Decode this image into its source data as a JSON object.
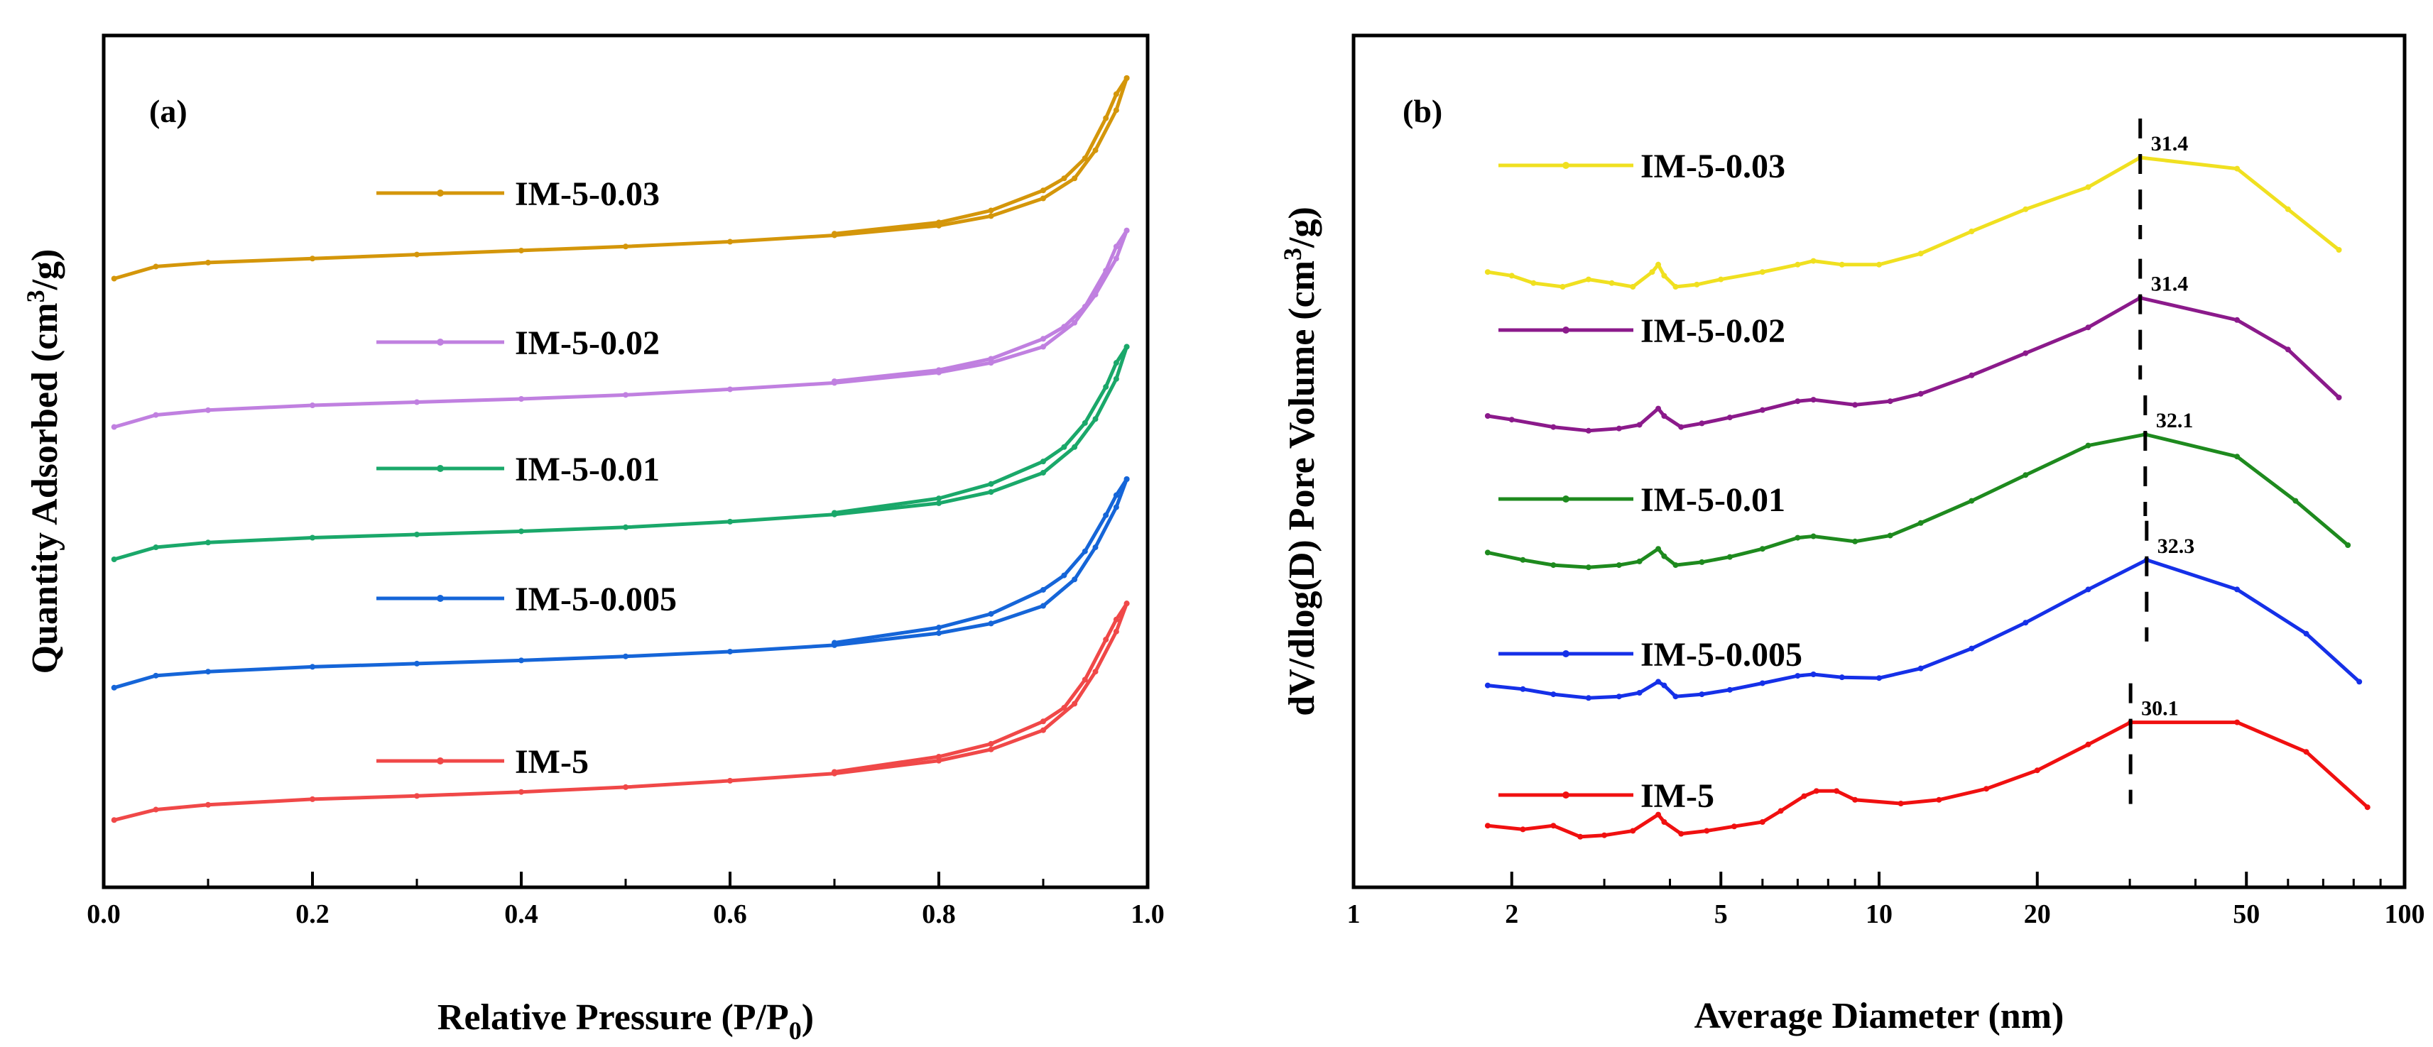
{
  "chart_data": [
    {
      "panel": "(a)",
      "type": "line",
      "xlabel": "Relative Pressure (P/P",
      "xlabel_sub": "0",
      "xlabel_close": ")",
      "ylabel": "Quantity Adsorbed (cm",
      "ylabel_sup": "3",
      "ylabel_close": "/g)",
      "xlim": [
        0,
        1
      ],
      "xticks": [
        "0.0",
        "0.2",
        "0.4",
        "0.6",
        "0.8",
        "1.0"
      ],
      "ylim": [
        0,
        100
      ],
      "y_tick_labels": false,
      "series": [
        {
          "name": "IM-5-0.03",
          "color": "#D4960A",
          "adsorption": [
            [
              0.01,
              75.0
            ],
            [
              0.05,
              76.5
            ],
            [
              0.1,
              77.0
            ],
            [
              0.2,
              77.5
            ],
            [
              0.3,
              78.0
            ],
            [
              0.4,
              78.5
            ],
            [
              0.5,
              79.0
            ],
            [
              0.6,
              79.6
            ],
            [
              0.7,
              80.4
            ],
            [
              0.8,
              81.6
            ],
            [
              0.85,
              82.8
            ],
            [
              0.9,
              85.0
            ],
            [
              0.93,
              87.5
            ],
            [
              0.95,
              91.0
            ],
            [
              0.97,
              96.0
            ],
            [
              0.98,
              100.0
            ]
          ],
          "desorption": [
            [
              0.98,
              100.0
            ],
            [
              0.97,
              98.0
            ],
            [
              0.96,
              95.0
            ],
            [
              0.94,
              90.0
            ],
            [
              0.92,
              87.5
            ],
            [
              0.9,
              86.0
            ],
            [
              0.85,
              83.5
            ],
            [
              0.8,
              82.0
            ],
            [
              0.7,
              80.6
            ]
          ]
        },
        {
          "name": "IM-5-0.02",
          "color": "#C080E0",
          "adsorption": [
            [
              0.01,
              56.5
            ],
            [
              0.05,
              58.0
            ],
            [
              0.1,
              58.6
            ],
            [
              0.2,
              59.2
            ],
            [
              0.3,
              59.6
            ],
            [
              0.4,
              60.0
            ],
            [
              0.5,
              60.5
            ],
            [
              0.6,
              61.2
            ],
            [
              0.7,
              62.0
            ],
            [
              0.8,
              63.3
            ],
            [
              0.85,
              64.5
            ],
            [
              0.9,
              66.5
            ],
            [
              0.93,
              69.5
            ],
            [
              0.95,
              73.0
            ],
            [
              0.97,
              77.5
            ],
            [
              0.98,
              81.0
            ]
          ],
          "desorption": [
            [
              0.98,
              81.0
            ],
            [
              0.97,
              79.0
            ],
            [
              0.96,
              76.0
            ],
            [
              0.94,
              71.5
            ],
            [
              0.92,
              69.0
            ],
            [
              0.9,
              67.5
            ],
            [
              0.85,
              65.0
            ],
            [
              0.8,
              63.6
            ],
            [
              0.7,
              62.2
            ]
          ]
        },
        {
          "name": "IM-5-0.01",
          "color": "#1AA86A",
          "adsorption": [
            [
              0.01,
              40.0
            ],
            [
              0.05,
              41.5
            ],
            [
              0.1,
              42.1
            ],
            [
              0.2,
              42.7
            ],
            [
              0.3,
              43.1
            ],
            [
              0.4,
              43.5
            ],
            [
              0.5,
              44.0
            ],
            [
              0.6,
              44.7
            ],
            [
              0.7,
              45.6
            ],
            [
              0.8,
              47.0
            ],
            [
              0.85,
              48.4
            ],
            [
              0.9,
              50.8
            ],
            [
              0.93,
              54.0
            ],
            [
              0.95,
              57.5
            ],
            [
              0.97,
              62.5
            ],
            [
              0.98,
              66.5
            ]
          ],
          "desorption": [
            [
              0.98,
              66.5
            ],
            [
              0.97,
              64.5
            ],
            [
              0.96,
              61.5
            ],
            [
              0.94,
              57.0
            ],
            [
              0.92,
              54.0
            ],
            [
              0.9,
              52.2
            ],
            [
              0.85,
              49.4
            ],
            [
              0.8,
              47.6
            ],
            [
              0.7,
              45.8
            ]
          ]
        },
        {
          "name": "IM-5-0.005",
          "color": "#1565D8",
          "adsorption": [
            [
              0.01,
              24.0
            ],
            [
              0.05,
              25.5
            ],
            [
              0.1,
              26.0
            ],
            [
              0.2,
              26.6
            ],
            [
              0.3,
              27.0
            ],
            [
              0.4,
              27.4
            ],
            [
              0.5,
              27.9
            ],
            [
              0.6,
              28.5
            ],
            [
              0.7,
              29.3
            ],
            [
              0.8,
              30.8
            ],
            [
              0.85,
              32.0
            ],
            [
              0.9,
              34.2
            ],
            [
              0.93,
              37.5
            ],
            [
              0.95,
              41.5
            ],
            [
              0.97,
              46.5
            ],
            [
              0.98,
              50.0
            ]
          ],
          "desorption": [
            [
              0.98,
              50.0
            ],
            [
              0.97,
              48.0
            ],
            [
              0.96,
              45.5
            ],
            [
              0.94,
              41.0
            ],
            [
              0.92,
              38.0
            ],
            [
              0.9,
              36.2
            ],
            [
              0.85,
              33.2
            ],
            [
              0.8,
              31.5
            ],
            [
              0.7,
              29.6
            ]
          ]
        },
        {
          "name": "IM-5",
          "color": "#F04848",
          "adsorption": [
            [
              0.01,
              7.5
            ],
            [
              0.05,
              8.8
            ],
            [
              0.1,
              9.4
            ],
            [
              0.2,
              10.1
            ],
            [
              0.3,
              10.5
            ],
            [
              0.4,
              11.0
            ],
            [
              0.5,
              11.6
            ],
            [
              0.6,
              12.4
            ],
            [
              0.7,
              13.3
            ],
            [
              0.8,
              14.9
            ],
            [
              0.85,
              16.3
            ],
            [
              0.9,
              18.7
            ],
            [
              0.93,
              22.0
            ],
            [
              0.95,
              26.0
            ],
            [
              0.97,
              31.0
            ],
            [
              0.98,
              34.5
            ]
          ],
          "desorption": [
            [
              0.98,
              34.5
            ],
            [
              0.97,
              32.5
            ],
            [
              0.96,
              30.0
            ],
            [
              0.94,
              25.0
            ],
            [
              0.92,
              21.5
            ],
            [
              0.9,
              19.8
            ],
            [
              0.85,
              17.0
            ],
            [
              0.8,
              15.4
            ],
            [
              0.7,
              13.5
            ]
          ]
        }
      ]
    },
    {
      "panel": "(b)",
      "type": "line",
      "xlabel": "Average Diameter (nm)",
      "ylabel": "dV/dlog(D) Pore Volume (cm",
      "ylabel_sup": "3",
      "ylabel_close": "/g)",
      "xscale": "log",
      "xlim": [
        1,
        100
      ],
      "xticks": [
        1,
        2,
        5,
        10,
        20,
        50,
        100
      ],
      "xtick_labels": [
        "1",
        "2",
        "5",
        "10",
        "20",
        "50",
        "100"
      ],
      "ylim": [
        0,
        100
      ],
      "y_tick_labels": false,
      "series": [
        {
          "name": "IM-5-0.03",
          "color": "#F0E020",
          "peak": 31.4,
          "peak_label": "31.4",
          "points": [
            [
              1.8,
              79.5
            ],
            [
              2.0,
              79.0
            ],
            [
              2.2,
              78.0
            ],
            [
              2.5,
              77.5
            ],
            [
              2.8,
              78.5
            ],
            [
              3.1,
              78.0
            ],
            [
              3.4,
              77.5
            ],
            [
              3.7,
              79.5
            ],
            [
              3.8,
              80.5
            ],
            [
              3.9,
              79.0
            ],
            [
              4.1,
              77.5
            ],
            [
              4.5,
              77.8
            ],
            [
              5.0,
              78.5
            ],
            [
              6.0,
              79.5
            ],
            [
              7.0,
              80.5
            ],
            [
              7.5,
              81.0
            ],
            [
              8.5,
              80.5
            ],
            [
              10.0,
              80.5
            ],
            [
              12.0,
              82.0
            ],
            [
              15.0,
              85.0
            ],
            [
              19.0,
              88.0
            ],
            [
              25.0,
              91.0
            ],
            [
              31.4,
              95.0
            ],
            [
              48.0,
              93.5
            ],
            [
              60.0,
              88.0
            ],
            [
              75.0,
              82.5
            ]
          ]
        },
        {
          "name": "IM-5-0.02",
          "color": "#8B1A8B",
          "peak": 31.4,
          "peak_label": "31.4",
          "points": [
            [
              1.8,
              60.0
            ],
            [
              2.0,
              59.5
            ],
            [
              2.4,
              58.5
            ],
            [
              2.8,
              58.0
            ],
            [
              3.2,
              58.3
            ],
            [
              3.5,
              58.8
            ],
            [
              3.8,
              61.0
            ],
            [
              3.9,
              60.0
            ],
            [
              4.2,
              58.5
            ],
            [
              4.6,
              59.0
            ],
            [
              5.2,
              59.8
            ],
            [
              6.0,
              60.8
            ],
            [
              7.0,
              62.0
            ],
            [
              7.5,
              62.2
            ],
            [
              9.0,
              61.5
            ],
            [
              10.5,
              62.0
            ],
            [
              12.0,
              63.0
            ],
            [
              15.0,
              65.5
            ],
            [
              19.0,
              68.5
            ],
            [
              25.0,
              72.0
            ],
            [
              31.4,
              76.0
            ],
            [
              48.0,
              73.0
            ],
            [
              60.0,
              69.0
            ],
            [
              75.0,
              62.5
            ]
          ]
        },
        {
          "name": "IM-5-0.01",
          "color": "#1E8A1E",
          "peak": 32.1,
          "peak_label": "32.1",
          "points": [
            [
              1.8,
              41.5
            ],
            [
              2.1,
              40.5
            ],
            [
              2.4,
              39.8
            ],
            [
              2.8,
              39.5
            ],
            [
              3.2,
              39.8
            ],
            [
              3.5,
              40.3
            ],
            [
              3.8,
              42.0
            ],
            [
              3.9,
              41.0
            ],
            [
              4.1,
              39.8
            ],
            [
              4.6,
              40.2
            ],
            [
              5.2,
              40.9
            ],
            [
              6.0,
              42.0
            ],
            [
              7.0,
              43.5
            ],
            [
              7.5,
              43.7
            ],
            [
              9.0,
              43.0
            ],
            [
              10.5,
              43.8
            ],
            [
              12.0,
              45.5
            ],
            [
              15.0,
              48.5
            ],
            [
              19.0,
              52.0
            ],
            [
              25.0,
              56.0
            ],
            [
              32.1,
              57.5
            ],
            [
              48.0,
              54.5
            ],
            [
              62.0,
              48.5
            ],
            [
              78.0,
              42.5
            ]
          ]
        },
        {
          "name": "IM-5-0.005",
          "color": "#1530E8",
          "peak": 32.3,
          "peak_label": "32.3",
          "points": [
            [
              1.8,
              23.5
            ],
            [
              2.1,
              23.0
            ],
            [
              2.4,
              22.3
            ],
            [
              2.8,
              21.8
            ],
            [
              3.2,
              22.0
            ],
            [
              3.5,
              22.5
            ],
            [
              3.8,
              24.0
            ],
            [
              3.9,
              23.5
            ],
            [
              4.1,
              22.0
            ],
            [
              4.6,
              22.3
            ],
            [
              5.2,
              22.9
            ],
            [
              6.0,
              23.8
            ],
            [
              7.0,
              24.8
            ],
            [
              7.5,
              25.0
            ],
            [
              8.5,
              24.6
            ],
            [
              10.0,
              24.5
            ],
            [
              12.0,
              25.8
            ],
            [
              15.0,
              28.5
            ],
            [
              19.0,
              32.0
            ],
            [
              25.0,
              36.5
            ],
            [
              32.3,
              40.5
            ],
            [
              48.0,
              36.5
            ],
            [
              65.0,
              30.5
            ],
            [
              82.0,
              24.0
            ]
          ]
        },
        {
          "name": "IM-5",
          "color": "#F01010",
          "peak": 30.1,
          "peak_label": "30.1",
          "points": [
            [
              1.8,
              4.5
            ],
            [
              2.1,
              4.0
            ],
            [
              2.4,
              4.5
            ],
            [
              2.7,
              3.0
            ],
            [
              3.0,
              3.2
            ],
            [
              3.4,
              3.8
            ],
            [
              3.8,
              6.0
            ],
            [
              3.9,
              5.0
            ],
            [
              4.2,
              3.4
            ],
            [
              4.7,
              3.8
            ],
            [
              5.3,
              4.4
            ],
            [
              6.0,
              5.0
            ],
            [
              6.5,
              6.5
            ],
            [
              7.2,
              8.5
            ],
            [
              7.6,
              9.2
            ],
            [
              8.3,
              9.2
            ],
            [
              9.0,
              8.0
            ],
            [
              11.0,
              7.5
            ],
            [
              13.0,
              8.0
            ],
            [
              16.0,
              9.5
            ],
            [
              20.0,
              12.0
            ],
            [
              25.0,
              15.5
            ],
            [
              30.1,
              18.5
            ],
            [
              48.0,
              18.5
            ],
            [
              65.0,
              14.5
            ],
            [
              85.0,
              7.0
            ]
          ]
        }
      ]
    }
  ]
}
